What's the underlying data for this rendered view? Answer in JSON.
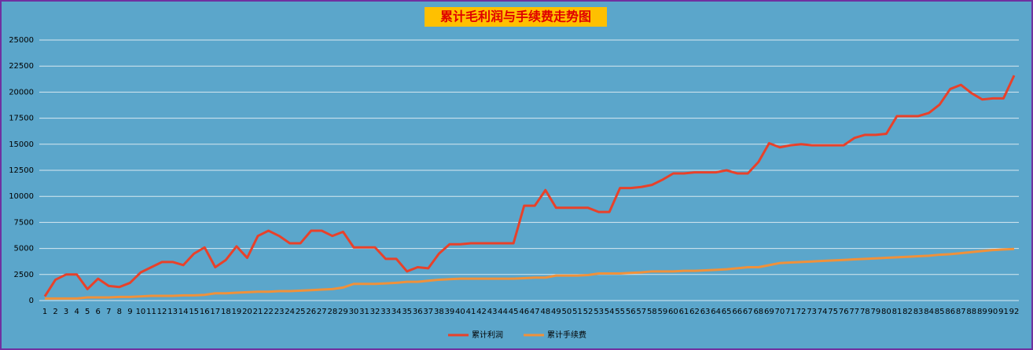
{
  "chart_data": {
    "type": "line",
    "title": "累计毛利润与手续费走势图",
    "categories": [
      1,
      2,
      3,
      4,
      5,
      6,
      7,
      8,
      9,
      10,
      11,
      12,
      13,
      14,
      15,
      16,
      17,
      18,
      19,
      20,
      21,
      22,
      23,
      24,
      25,
      26,
      27,
      28,
      29,
      30,
      31,
      32,
      33,
      34,
      35,
      36,
      37,
      38,
      39,
      40,
      41,
      42,
      43,
      44,
      45,
      46,
      47,
      48,
      49,
      50,
      51,
      52,
      53,
      54,
      55,
      56,
      57,
      58,
      59,
      60,
      61,
      62,
      63,
      64,
      65,
      66,
      67,
      68,
      69,
      70,
      71,
      72,
      73,
      74,
      75,
      76,
      77,
      78,
      79,
      80,
      81,
      82,
      83,
      84,
      85,
      86,
      87,
      88,
      89,
      90,
      91,
      92
    ],
    "series": [
      {
        "name": "累计利润",
        "color": "#e8412a",
        "values": [
          400,
          2000,
          2500,
          2500,
          1100,
          2100,
          1400,
          1300,
          1700,
          2700,
          3200,
          3700,
          3700,
          3400,
          4500,
          5100,
          3200,
          3900,
          5200,
          4100,
          6200,
          6700,
          6200,
          5500,
          5500,
          6700,
          6700,
          6200,
          6600,
          5100,
          5100,
          5100,
          4000,
          4000,
          2800,
          3200,
          3100,
          4500,
          5400,
          5400,
          5500,
          5500,
          5500,
          5500,
          5500,
          9100,
          9100,
          10600,
          8900,
          8900,
          8900,
          8900,
          8500,
          8500,
          10800,
          10800,
          10900,
          11100,
          11600,
          12200,
          12200,
          12300,
          12300,
          12300,
          12500,
          12200,
          12200,
          13300,
          15100,
          14700,
          14900,
          15000,
          14900,
          14900,
          14900,
          14900,
          15600,
          15900,
          15900,
          16000,
          17700,
          17700,
          17700,
          18000,
          18800,
          20300,
          20700,
          19900,
          19300,
          19400,
          19400,
          21600
        ]
      },
      {
        "name": "累计手续费",
        "color": "#f0913a",
        "values": [
          200,
          200,
          200,
          200,
          300,
          300,
          300,
          350,
          350,
          400,
          450,
          450,
          450,
          500,
          500,
          550,
          700,
          700,
          750,
          800,
          850,
          850,
          900,
          900,
          950,
          1000,
          1050,
          1100,
          1250,
          1600,
          1600,
          1600,
          1650,
          1700,
          1800,
          1800,
          1900,
          2000,
          2050,
          2100,
          2100,
          2100,
          2100,
          2100,
          2100,
          2150,
          2200,
          2200,
          2400,
          2400,
          2400,
          2450,
          2600,
          2600,
          2600,
          2650,
          2700,
          2800,
          2800,
          2800,
          2850,
          2850,
          2900,
          2950,
          3000,
          3100,
          3200,
          3200,
          3400,
          3600,
          3650,
          3700,
          3750,
          3800,
          3850,
          3900,
          3950,
          4000,
          4050,
          4100,
          4150,
          4200,
          4250,
          4300,
          4400,
          4450,
          4550,
          4650,
          4750,
          4850,
          4900,
          4950
        ]
      }
    ],
    "ylim": [
      0,
      25000
    ],
    "yticks": [
      0,
      2500,
      5000,
      7500,
      10000,
      12500,
      15000,
      17500,
      20000,
      22500,
      25000
    ],
    "grid": true,
    "legend": "bottom"
  }
}
